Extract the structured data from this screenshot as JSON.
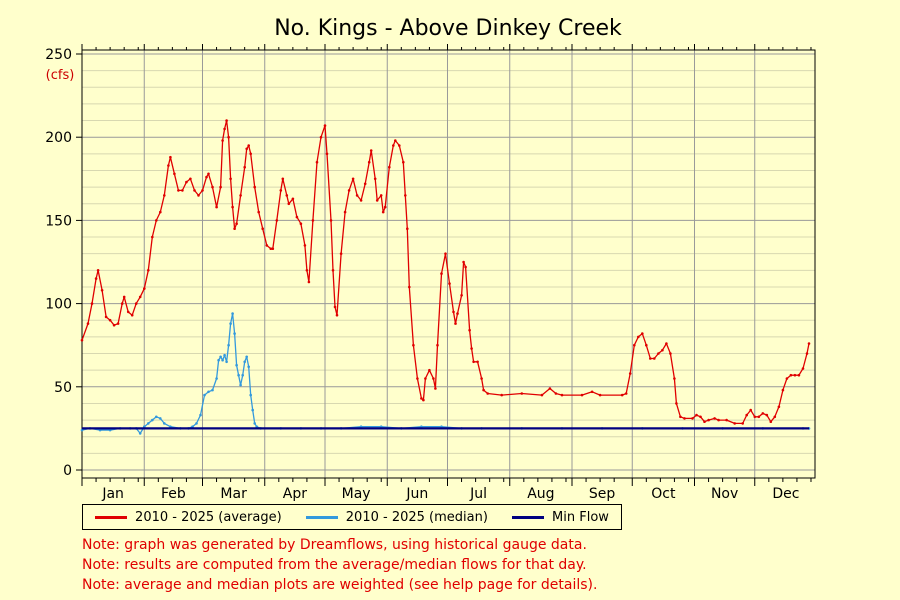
{
  "chart_data": {
    "type": "line",
    "title": "No. Kings - Above Dinkey Creek",
    "unit_label": "(cfs)",
    "ylim": [
      0,
      250
    ],
    "yticks": [
      0,
      50,
      100,
      150,
      200,
      250
    ],
    "xlim": [
      1,
      366
    ],
    "months": [
      "Jan",
      "Feb",
      "Mar",
      "Apr",
      "May",
      "Jun",
      "Jul",
      "Aug",
      "Sep",
      "Oct",
      "Nov",
      "Dec"
    ],
    "grid": true,
    "legend_position": "bottom",
    "x_unit": "day of year",
    "series": [
      {
        "name": "2010 - 2025 (average)",
        "color": "#e00000",
        "points": [
          [
            1,
            78
          ],
          [
            4,
            88
          ],
          [
            6,
            100
          ],
          [
            8,
            115
          ],
          [
            9,
            120
          ],
          [
            11,
            108
          ],
          [
            13,
            92
          ],
          [
            15,
            90
          ],
          [
            17,
            87
          ],
          [
            19,
            88
          ],
          [
            21,
            100
          ],
          [
            22,
            104
          ],
          [
            24,
            95
          ],
          [
            26,
            93
          ],
          [
            28,
            100
          ],
          [
            30,
            104
          ],
          [
            32,
            109
          ],
          [
            34,
            120
          ],
          [
            36,
            140
          ],
          [
            38,
            150
          ],
          [
            40,
            155
          ],
          [
            42,
            165
          ],
          [
            44,
            183
          ],
          [
            45,
            188
          ],
          [
            47,
            178
          ],
          [
            49,
            168
          ],
          [
            51,
            168
          ],
          [
            53,
            173
          ],
          [
            55,
            175
          ],
          [
            57,
            168
          ],
          [
            59,
            165
          ],
          [
            61,
            168
          ],
          [
            63,
            176
          ],
          [
            64,
            178
          ],
          [
            66,
            170
          ],
          [
            68,
            158
          ],
          [
            70,
            170
          ],
          [
            71,
            198
          ],
          [
            72,
            205
          ],
          [
            73,
            210
          ],
          [
            74,
            200
          ],
          [
            75,
            175
          ],
          [
            76,
            158
          ],
          [
            77,
            145
          ],
          [
            78,
            148
          ],
          [
            80,
            165
          ],
          [
            82,
            182
          ],
          [
            83,
            193
          ],
          [
            84,
            195
          ],
          [
            85,
            190
          ],
          [
            87,
            170
          ],
          [
            89,
            155
          ],
          [
            91,
            145
          ],
          [
            93,
            135
          ],
          [
            95,
            133
          ],
          [
            96,
            133
          ],
          [
            98,
            150
          ],
          [
            100,
            168
          ],
          [
            101,
            175
          ],
          [
            103,
            165
          ],
          [
            104,
            160
          ],
          [
            106,
            163
          ],
          [
            108,
            152
          ],
          [
            110,
            148
          ],
          [
            112,
            135
          ],
          [
            113,
            120
          ],
          [
            114,
            113
          ],
          [
            116,
            150
          ],
          [
            118,
            185
          ],
          [
            120,
            200
          ],
          [
            122,
            207
          ],
          [
            123,
            190
          ],
          [
            125,
            150
          ],
          [
            126,
            120
          ],
          [
            127,
            98
          ],
          [
            128,
            93
          ],
          [
            130,
            130
          ],
          [
            132,
            155
          ],
          [
            134,
            168
          ],
          [
            136,
            175
          ],
          [
            138,
            165
          ],
          [
            140,
            162
          ],
          [
            142,
            172
          ],
          [
            144,
            185
          ],
          [
            145,
            192
          ],
          [
            147,
            175
          ],
          [
            148,
            162
          ],
          [
            150,
            165
          ],
          [
            151,
            155
          ],
          [
            152,
            158
          ],
          [
            154,
            182
          ],
          [
            156,
            195
          ],
          [
            157,
            198
          ],
          [
            159,
            195
          ],
          [
            161,
            185
          ],
          [
            162,
            165
          ],
          [
            163,
            145
          ],
          [
            164,
            110
          ],
          [
            166,
            75
          ],
          [
            168,
            55
          ],
          [
            170,
            43
          ],
          [
            171,
            42
          ],
          [
            172,
            55
          ],
          [
            174,
            60
          ],
          [
            176,
            55
          ],
          [
            177,
            49
          ],
          [
            178,
            75
          ],
          [
            180,
            118
          ],
          [
            182,
            130
          ],
          [
            184,
            112
          ],
          [
            186,
            95
          ],
          [
            187,
            88
          ],
          [
            188,
            94
          ],
          [
            190,
            105
          ],
          [
            191,
            125
          ],
          [
            192,
            122
          ],
          [
            194,
            84
          ],
          [
            195,
            73
          ],
          [
            196,
            65
          ],
          [
            198,
            65
          ],
          [
            200,
            55
          ],
          [
            201,
            48
          ],
          [
            203,
            46
          ],
          [
            210,
            45
          ],
          [
            220,
            46
          ],
          [
            230,
            45
          ],
          [
            234,
            49
          ],
          [
            237,
            46
          ],
          [
            240,
            45
          ],
          [
            250,
            45
          ],
          [
            255,
            47
          ],
          [
            259,
            45
          ],
          [
            270,
            45
          ],
          [
            272,
            46
          ],
          [
            274,
            58
          ],
          [
            276,
            75
          ],
          [
            278,
            80
          ],
          [
            280,
            82
          ],
          [
            282,
            75
          ],
          [
            284,
            67
          ],
          [
            286,
            67
          ],
          [
            288,
            70
          ],
          [
            290,
            72
          ],
          [
            292,
            76
          ],
          [
            294,
            70
          ],
          [
            296,
            55
          ],
          [
            297,
            40
          ],
          [
            299,
            32
          ],
          [
            301,
            31
          ],
          [
            305,
            31
          ],
          [
            307,
            33
          ],
          [
            309,
            32
          ],
          [
            311,
            29
          ],
          [
            313,
            30
          ],
          [
            316,
            31
          ],
          [
            318,
            30
          ],
          [
            322,
            30
          ],
          [
            326,
            28
          ],
          [
            330,
            28
          ],
          [
            332,
            33
          ],
          [
            334,
            36
          ],
          [
            336,
            32
          ],
          [
            338,
            32
          ],
          [
            340,
            34
          ],
          [
            342,
            33
          ],
          [
            344,
            29
          ],
          [
            346,
            32
          ],
          [
            348,
            38
          ],
          [
            350,
            48
          ],
          [
            352,
            55
          ],
          [
            354,
            57
          ],
          [
            356,
            57
          ],
          [
            358,
            57
          ],
          [
            360,
            61
          ],
          [
            362,
            70
          ],
          [
            363,
            76
          ]
        ]
      },
      {
        "name": "2010 - 2025 (median)",
        "color": "#3399dd",
        "points": [
          [
            1,
            24
          ],
          [
            5,
            25
          ],
          [
            10,
            24
          ],
          [
            15,
            24
          ],
          [
            20,
            25
          ],
          [
            25,
            25
          ],
          [
            28,
            25
          ],
          [
            30,
            22
          ],
          [
            32,
            26
          ],
          [
            34,
            28
          ],
          [
            36,
            30
          ],
          [
            38,
            32
          ],
          [
            40,
            31
          ],
          [
            42,
            28
          ],
          [
            45,
            26
          ],
          [
            50,
            25
          ],
          [
            54,
            25
          ],
          [
            56,
            26
          ],
          [
            58,
            28
          ],
          [
            60,
            33
          ],
          [
            62,
            45
          ],
          [
            64,
            47
          ],
          [
            66,
            48
          ],
          [
            68,
            55
          ],
          [
            69,
            66
          ],
          [
            70,
            68
          ],
          [
            71,
            66
          ],
          [
            72,
            69
          ],
          [
            73,
            65
          ],
          [
            74,
            75
          ],
          [
            75,
            88
          ],
          [
            76,
            94
          ],
          [
            77,
            82
          ],
          [
            78,
            63
          ],
          [
            79,
            57
          ],
          [
            80,
            51
          ],
          [
            81,
            57
          ],
          [
            82,
            65
          ],
          [
            83,
            68
          ],
          [
            84,
            62
          ],
          [
            85,
            45
          ],
          [
            86,
            36
          ],
          [
            87,
            28
          ],
          [
            88,
            26
          ],
          [
            90,
            25
          ],
          [
            100,
            25
          ],
          [
            110,
            25
          ],
          [
            120,
            25
          ],
          [
            130,
            25
          ],
          [
            140,
            26
          ],
          [
            150,
            26
          ],
          [
            160,
            25
          ],
          [
            170,
            26
          ],
          [
            180,
            26
          ],
          [
            190,
            25
          ],
          [
            200,
            25
          ],
          [
            220,
            25
          ],
          [
            240,
            25
          ],
          [
            260,
            25
          ],
          [
            280,
            25
          ],
          [
            300,
            25
          ],
          [
            320,
            25
          ],
          [
            340,
            25
          ],
          [
            360,
            25
          ],
          [
            363,
            25
          ]
        ]
      },
      {
        "name": "Min Flow",
        "color": "#000080",
        "points": [
          [
            1,
            25
          ],
          [
            363,
            25
          ]
        ]
      }
    ]
  },
  "notes": [
    "Note: graph was generated by Dreamflows, using historical gauge data.",
    "Note: results are computed from the average/median flows for that day.",
    "Note: average and median plots are weighted (see help page for details)."
  ]
}
